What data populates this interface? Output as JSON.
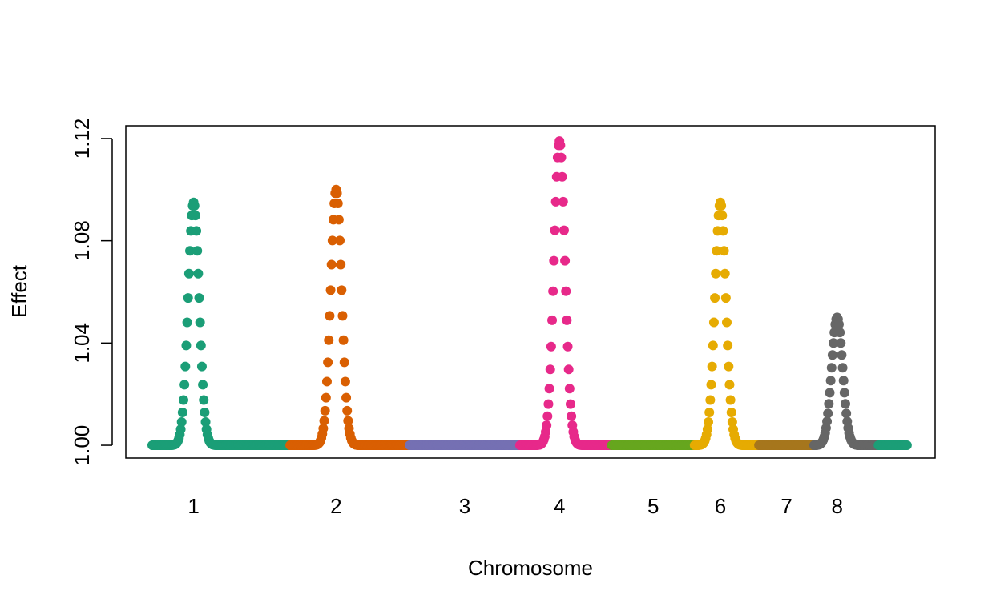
{
  "chart_data": {
    "type": "scatter",
    "xlabel": "Chromosome",
    "ylabel": "Effect",
    "ylim": [
      0.995,
      1.125
    ],
    "yticks": [
      "1.00",
      "1.04",
      "1.08",
      "1.12"
    ],
    "ytick_values": [
      1.0,
      1.04,
      1.08,
      1.12
    ],
    "chromosomes": [
      {
        "label": "1",
        "color": "#1b9e77",
        "range": [
          0,
          150
        ],
        "peaks": [
          {
            "center": 45,
            "height": 0.095,
            "width": 6
          }
        ]
      },
      {
        "label": "2",
        "color": "#d95f02",
        "range": [
          150,
          280
        ],
        "peaks": [
          {
            "center": 200,
            "height": 0.1,
            "width": 6
          }
        ]
      },
      {
        "label": "3",
        "color": "#7570b3",
        "range": [
          280,
          400
        ],
        "peaks": []
      },
      {
        "label": "4",
        "color": "#e7298a",
        "range": [
          400,
          500
        ],
        "peaks": [
          {
            "center": 443,
            "height": 0.119,
            "width": 6
          }
        ]
      },
      {
        "label": "5",
        "color": "#66a61e",
        "range": [
          500,
          590
        ],
        "peaks": []
      },
      {
        "label": "6",
        "color": "#e6ab02",
        "range": [
          590,
          660
        ],
        "peaks": [
          {
            "center": 618,
            "height": 0.095,
            "width": 6
          }
        ]
      },
      {
        "label": "7",
        "color": "#a6761d",
        "range": [
          660,
          720
        ],
        "peaks": []
      },
      {
        "label": "8",
        "color": "#666666",
        "range": [
          720,
          790
        ],
        "peaks": [
          {
            "center": 745,
            "height": 0.05,
            "width": 6
          }
        ]
      },
      {
        "label": "",
        "color": "#1b9e77",
        "range": [
          790,
          822
        ],
        "peaks": []
      }
    ],
    "grid": false,
    "legend": "none"
  }
}
